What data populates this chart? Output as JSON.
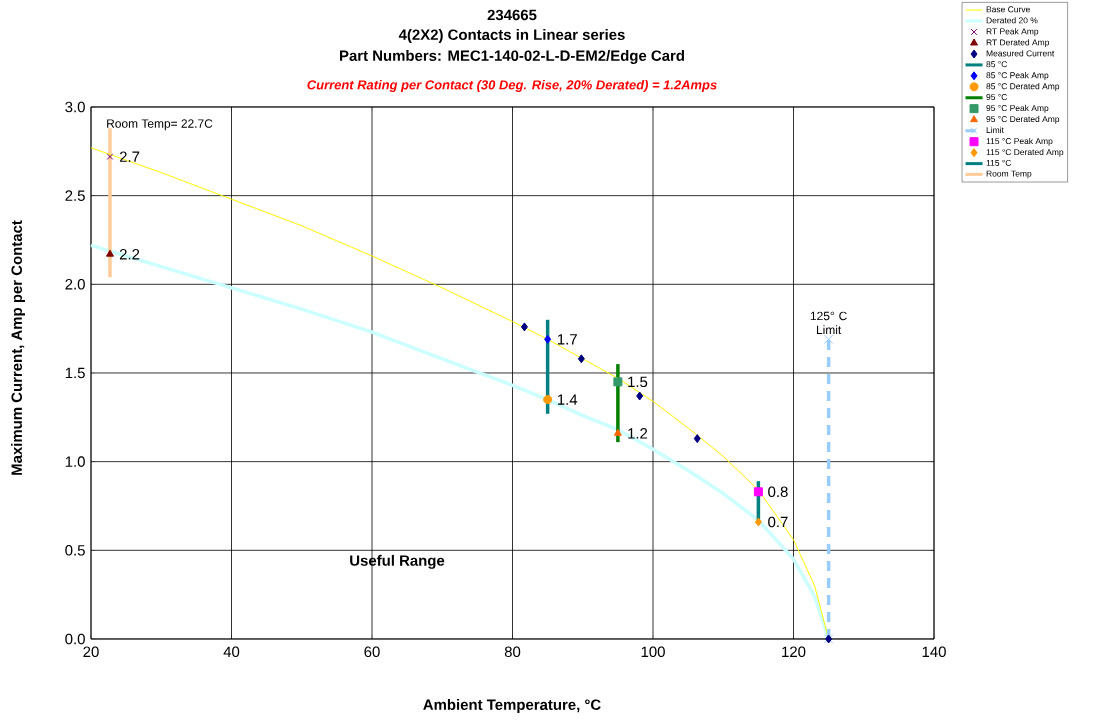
{
  "chart_data": {
    "type": "line",
    "title": "234665",
    "subtitle": "4(2X2) Contacts in Linear series",
    "xlabel": "Ambient Temperature,  °C",
    "ylabel": "Maximum Current, Amp per Contact",
    "xlim": [
      20,
      140
    ],
    "xticks": [
      20,
      40,
      60,
      80,
      100,
      120,
      140
    ],
    "ylim": [
      0,
      3
    ],
    "yticks": [
      {
        "value": 0,
        "label": "0.0"
      },
      {
        "value": 0.5,
        "label": "0.5"
      },
      {
        "value": 1,
        "label": "1.0"
      },
      {
        "value": 1.5,
        "label": "1.5"
      },
      {
        "value": 2,
        "label": "2.0"
      },
      {
        "value": 2.5,
        "label": "2.5"
      },
      {
        "value": 3,
        "label": "3.0"
      }
    ],
    "grid": true,
    "legend": "top right",
    "annotations": [
      "Part Numbers: MEC1-140-02-L-D-EM2/Edge Card",
      "Current Rating per Contact (30 Deg. Rise, 20% Derated)  = 1.2Amps",
      {
        "text": "Room Temp= 22.7C",
        "x": 22.7,
        "y": 2.9
      },
      {
        "text": "125° C Limit",
        "x": 125,
        "y": 1.69
      },
      "Useful Range"
    ],
    "series": [
      {
        "name": "Base Curve",
        "color": "#ffff00",
        "marker": "none",
        "x": [
          20,
          30,
          40,
          50,
          60,
          70,
          80,
          85,
          90,
          95,
          100,
          105,
          110,
          115,
          120,
          123,
          125
        ],
        "values": [
          2.77,
          2.63,
          2.48,
          2.33,
          2.16,
          1.98,
          1.79,
          1.69,
          1.58,
          1.47,
          1.34,
          1.19,
          1.03,
          0.84,
          0.56,
          0.3,
          0
        ]
      },
      {
        "name": "Derated 20 %",
        "color": "#ccffff",
        "marker": "none",
        "x": [
          20,
          30,
          40,
          50,
          60,
          70,
          80,
          85,
          90,
          95,
          100,
          105,
          110,
          115,
          120,
          123,
          125
        ],
        "values": [
          2.22,
          2.1,
          1.98,
          1.86,
          1.73,
          1.58,
          1.43,
          1.35,
          1.26,
          1.18,
          1.07,
          0.95,
          0.82,
          0.67,
          0.45,
          0.24,
          0
        ]
      },
      {
        "name": "RT Peak Amp",
        "type": "scatter",
        "color": "#800080",
        "marker": "cross",
        "x": [
          22.7
        ],
        "values": [
          2.72
        ],
        "value_labels": [
          "2.7"
        ]
      },
      {
        "name": "RT Derated Amp",
        "type": "scatter",
        "color": "#800000",
        "marker": "triangle",
        "x": [
          22.7
        ],
        "values": [
          2.17
        ],
        "value_labels": [
          "2.2"
        ]
      },
      {
        "name": "Measured Current",
        "type": "scatter",
        "color": "#000080",
        "marker": "diamond",
        "x": [
          81.7,
          89.8,
          98.1,
          106.3,
          125
        ],
        "values": [
          1.76,
          1.58,
          1.37,
          1.13,
          0
        ]
      },
      {
        "name": "85 °C",
        "color": "#008080",
        "marker": "none",
        "x": [
          85,
          85
        ],
        "values": [
          1.27,
          1.8
        ]
      },
      {
        "name": "85 °C Peak Amp",
        "type": "scatter",
        "color": "#0000ff",
        "marker": "diamond",
        "x": [
          85
        ],
        "values": [
          1.69
        ],
        "value_labels": [
          "1.7"
        ]
      },
      {
        "name": "85 °C Derated Amp",
        "type": "scatter",
        "color": "#ff9900",
        "marker": "circle",
        "x": [
          85
        ],
        "values": [
          1.35
        ],
        "value_labels": [
          "1.4"
        ]
      },
      {
        "name": "95 °C",
        "color": "#008000",
        "marker": "none",
        "x": [
          95,
          95
        ],
        "values": [
          1.11,
          1.55
        ]
      },
      {
        "name": "95 °C Peak Amp",
        "type": "scatter",
        "color": "#339966",
        "marker": "square",
        "x": [
          95
        ],
        "values": [
          1.45
        ],
        "value_labels": [
          "1.5"
        ]
      },
      {
        "name": "95 °C Derated Amp",
        "type": "scatter",
        "color": "#ff6600",
        "marker": "triangle",
        "x": [
          95
        ],
        "values": [
          1.16
        ],
        "value_labels": [
          "1.2"
        ]
      },
      {
        "name": "Limit",
        "color": "#99ccff",
        "marker": "cross",
        "line_style": "dashed",
        "x": [
          125,
          125
        ],
        "values": [
          0,
          1.69
        ]
      },
      {
        "name": "115 °C Peak Amp",
        "type": "scatter",
        "color": "#ff00ff",
        "marker": "square",
        "x": [
          115
        ],
        "values": [
          0.83
        ],
        "value_labels": [
          "0.8"
        ]
      },
      {
        "name": "115 °C Derated Amp",
        "type": "scatter",
        "color": "#ff9900",
        "marker": "diamond",
        "x": [
          115
        ],
        "values": [
          0.66
        ],
        "value_labels": [
          "0.7"
        ]
      },
      {
        "name": "115 °C",
        "color": "#008080",
        "marker": "none",
        "x": [
          115,
          115
        ],
        "values": [
          0.66,
          0.89
        ]
      },
      {
        "name": "Room Temp",
        "color": "#ffcc99",
        "marker": "none",
        "x": [
          22.7,
          22.7
        ],
        "values": [
          2.04,
          2.88
        ]
      }
    ]
  }
}
